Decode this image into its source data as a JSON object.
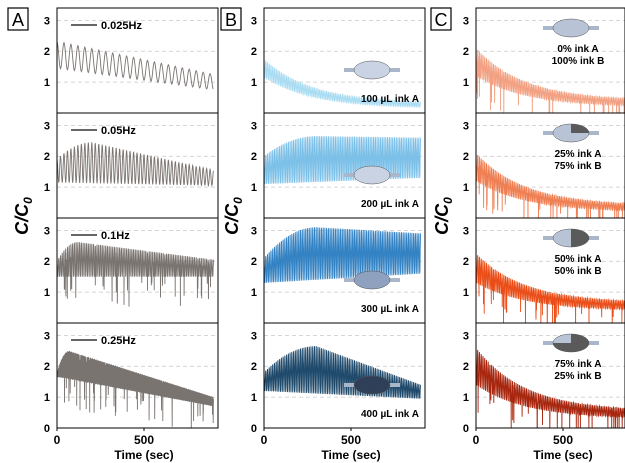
{
  "figure": {
    "y_axis_label_main": "C",
    "y_axis_label_sub": "0",
    "x_axis_label": "Time (sec)"
  },
  "chart_data": [
    {
      "type": "line",
      "panel": "A",
      "x_ticks": [
        "0",
        "500"
      ],
      "y_ticks": [
        "1",
        "2",
        "3"
      ],
      "xlim": [
        0,
        900
      ],
      "ylim": [
        0,
        3.4
      ],
      "grid": "horizontal-dashed",
      "series": [
        {
          "legend": "0.025Hz",
          "color": "#7a7471",
          "freq_hz": 0.025,
          "max_start": 2.3,
          "max_peak": 2.3,
          "peak_time": 20,
          "max_end": 1.25,
          "min_start": 1.45,
          "min_end": 0.75,
          "spikes": false
        },
        {
          "legend": "0.05Hz",
          "color": "#7a7471",
          "freq_hz": 0.05,
          "max_start": 1.9,
          "max_peak": 2.45,
          "peak_time": 200,
          "max_end": 1.55,
          "min_start": 1.15,
          "min_end": 1.05,
          "spikes": false
        },
        {
          "legend": "0.1Hz",
          "color": "#7a7471",
          "freq_hz": 0.1,
          "max_start": 2.0,
          "max_peak": 2.62,
          "peak_time": 120,
          "max_end": 2.05,
          "min_start": 1.5,
          "min_end": 1.5,
          "spikes": true
        },
        {
          "legend": "0.25Hz",
          "color": "#7a7471",
          "freq_hz": 0.25,
          "max_start": 1.8,
          "max_peak": 2.5,
          "peak_time": 70,
          "max_end": 1.0,
          "min_start": 1.65,
          "min_end": 0.7,
          "spikes": true
        }
      ]
    },
    {
      "type": "line",
      "panel": "B",
      "x_ticks": [
        "0",
        "500"
      ],
      "y_ticks": [
        "1",
        "2",
        "3"
      ],
      "xlim": [
        0,
        900
      ],
      "ylim": [
        0,
        3.4
      ],
      "grid": "horizontal-dashed",
      "series": [
        {
          "label": "100 µL ink A",
          "color": "#a9dcf2",
          "icon": "ellipse-light",
          "freq_hz": 0.1,
          "max_start": 1.75,
          "max_peak": 1.75,
          "peak_time": 0,
          "max_end": 0.3,
          "min_start": 1.15,
          "min_end": 0.15,
          "decay": "exp",
          "spikes": false
        },
        {
          "label": "200 µL ink A",
          "color": "#7cc0e8",
          "icon": "ellipse-light",
          "freq_hz": 0.1,
          "max_start": 2.0,
          "max_peak": 2.65,
          "peak_time": 300,
          "max_end": 2.6,
          "min_start": 1.1,
          "min_end": 1.3,
          "spikes": false
        },
        {
          "label": "300 µL ink A",
          "color": "#3382c3",
          "icon": "ellipse-mid",
          "freq_hz": 0.1,
          "max_start": 2.1,
          "max_peak": 3.1,
          "peak_time": 300,
          "max_end": 2.9,
          "min_start": 1.3,
          "min_end": 1.6,
          "spikes": false
        },
        {
          "label": "400 µL ink A",
          "color": "#1f4a6b",
          "icon": "ellipse-dark",
          "freq_hz": 0.1,
          "max_start": 1.8,
          "max_peak": 2.65,
          "peak_time": 300,
          "max_end": 1.4,
          "min_start": 1.2,
          "min_end": 0.95,
          "spikes": false
        }
      ]
    },
    {
      "type": "line",
      "panel": "C",
      "x_ticks": [
        "0",
        "500"
      ],
      "y_ticks": [
        "1",
        "2",
        "3"
      ],
      "xlim": [
        0,
        900
      ],
      "ylim": [
        0,
        3.4
      ],
      "grid": "horizontal-dashed",
      "series": [
        {
          "label_lines": [
            "0% ink A",
            "100% ink B"
          ],
          "color": "#f2a081",
          "icon": "ellipse-0",
          "freq_hz": 0.1,
          "max_start": 2.1,
          "max_peak": 2.1,
          "peak_time": 0,
          "max_end": 0.4,
          "min_start": 1.2,
          "min_end": 0.2,
          "decay": "exp",
          "spikes": true
        },
        {
          "label_lines": [
            "25% ink A",
            "75% ink B"
          ],
          "color": "#ef7f52",
          "icon": "ellipse-25",
          "freq_hz": 0.1,
          "max_start": 2.1,
          "max_peak": 2.1,
          "peak_time": 0,
          "max_end": 0.4,
          "min_start": 1.2,
          "min_end": 0.2,
          "decay": "exp",
          "spikes": true
        },
        {
          "label_lines": [
            "50% ink A",
            "50% ink B"
          ],
          "color": "#ea4d17",
          "icon": "ellipse-50",
          "freq_hz": 0.1,
          "max_start": 2.25,
          "max_peak": 2.25,
          "peak_time": 0,
          "max_end": 0.65,
          "min_start": 1.3,
          "min_end": 0.4,
          "decay": "exp",
          "spikes": true
        },
        {
          "label_lines": [
            "75% ink A",
            "25% ink B"
          ],
          "color": "#a8260e",
          "icon": "ellipse-75",
          "freq_hz": 0.1,
          "max_start": 2.6,
          "max_peak": 2.6,
          "peak_time": 0,
          "max_end": 0.55,
          "min_start": 1.4,
          "min_end": 0.3,
          "decay": "exp",
          "spikes": true
        }
      ]
    }
  ]
}
